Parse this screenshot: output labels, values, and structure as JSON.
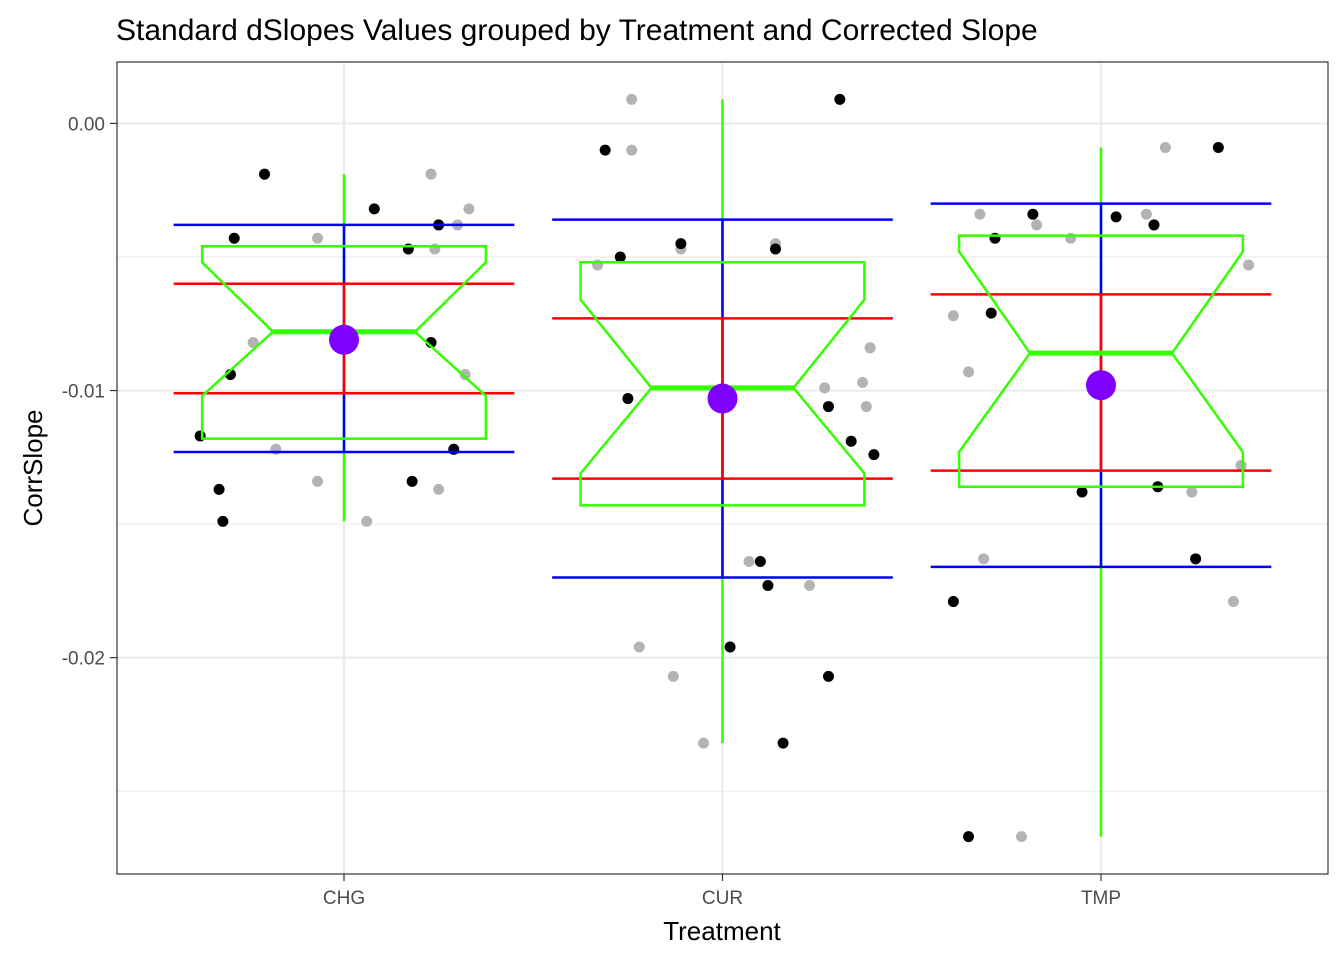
{
  "chart_data": {
    "type": "box",
    "title": "Standard dSlopes Values grouped by Treatment and Corrected Slope",
    "xlabel": "Treatment",
    "ylabel": "CorrSlope",
    "categories": [
      "CHG",
      "CUR",
      "TMP"
    ],
    "ylim": [
      -0.0281,
      0.0023
    ],
    "y_ticks": [
      0.0,
      -0.01,
      -0.02
    ],
    "y_tick_labels": [
      "0.00",
      "-0.01",
      "-0.02"
    ],
    "grid": true,
    "legend": "none",
    "colors": {
      "box": "#33ff00",
      "sd_band": "#ff0000",
      "range_band": "#0000ff",
      "mean_marker": "#8000ff",
      "points_primary": "#000000",
      "points_secondary": "#b3b3b3",
      "grid": "#ebebeb",
      "panel_border": "#333333"
    },
    "boxes": [
      {
        "category": "CHG",
        "q1": -0.0118,
        "q3": -0.0046,
        "median": -0.0078,
        "notch_low": -0.0102,
        "notch_high": -0.0052,
        "whisker_low": -0.0149,
        "whisker_high": -0.0019,
        "mean": -0.0081,
        "sd_low": -0.0101,
        "sd_high": -0.006,
        "outer_low": -0.0123,
        "outer_high": -0.0038
      },
      {
        "category": "CUR",
        "q1": -0.0143,
        "q3": -0.0052,
        "median": -0.0099,
        "notch_low": -0.0131,
        "notch_high": -0.0066,
        "whisker_low": -0.0232,
        "whisker_high": 0.0009,
        "mean": -0.0103,
        "sd_low": -0.0133,
        "sd_high": -0.0073,
        "outer_low": -0.017,
        "outer_high": -0.0036
      },
      {
        "category": "TMP",
        "q1": -0.0136,
        "q3": -0.0042,
        "median": -0.0086,
        "notch_low": -0.0123,
        "notch_high": -0.0048,
        "whisker_low": -0.0267,
        "whisker_high": -0.0009,
        "mean": -0.0098,
        "sd_low": -0.013,
        "sd_high": -0.0064,
        "outer_low": -0.0166,
        "outer_high": -0.003
      }
    ],
    "points": {
      "CHG": {
        "primary": [
          [
            -0.29,
            -0.0043
          ],
          [
            -0.3,
            -0.0094
          ],
          [
            -0.38,
            -0.0117
          ],
          [
            -0.33,
            -0.0137
          ],
          [
            -0.32,
            -0.0149
          ],
          [
            -0.21,
            -0.0019
          ],
          [
            0.08,
            -0.0032
          ],
          [
            0.17,
            -0.0047
          ],
          [
            0.25,
            -0.0038
          ],
          [
            0.23,
            -0.0082
          ],
          [
            0.18,
            -0.0134
          ],
          [
            0.29,
            -0.0122
          ]
        ],
        "secondary": [
          [
            -0.24,
            -0.0082
          ],
          [
            -0.18,
            -0.0122
          ],
          [
            -0.07,
            -0.0043
          ],
          [
            -0.07,
            -0.0134
          ],
          [
            0.06,
            -0.0149
          ],
          [
            0.23,
            -0.0019
          ],
          [
            0.24,
            -0.0047
          ],
          [
            0.3,
            -0.0038
          ],
          [
            0.33,
            -0.0032
          ],
          [
            0.32,
            -0.0094
          ],
          [
            0.25,
            -0.0137
          ]
        ]
      },
      "CUR": {
        "primary": [
          [
            -0.31,
            -0.001
          ],
          [
            -0.27,
            -0.005
          ],
          [
            -0.25,
            -0.0103
          ],
          [
            -0.11,
            -0.0045
          ],
          [
            0.02,
            -0.0196
          ],
          [
            0.1,
            -0.0164
          ],
          [
            0.12,
            -0.0173
          ],
          [
            0.14,
            -0.0047
          ],
          [
            0.16,
            -0.0232
          ],
          [
            0.31,
            0.0009
          ],
          [
            0.28,
            -0.0106
          ],
          [
            0.34,
            -0.0119
          ],
          [
            0.4,
            -0.0124
          ],
          [
            0.28,
            -0.0207
          ]
        ],
        "secondary": [
          [
            -0.24,
            0.0009
          ],
          [
            -0.24,
            -0.001
          ],
          [
            -0.22,
            -0.0196
          ],
          [
            -0.13,
            -0.0207
          ],
          [
            -0.11,
            -0.0047
          ],
          [
            -0.05,
            -0.0232
          ],
          [
            0.07,
            -0.0164
          ],
          [
            0.14,
            -0.0045
          ],
          [
            0.23,
            -0.0173
          ],
          [
            0.27,
            -0.0099
          ],
          [
            0.37,
            -0.0097
          ],
          [
            0.38,
            -0.0106
          ],
          [
            0.39,
            -0.0084
          ],
          [
            -0.33,
            -0.0053
          ]
        ]
      },
      "TMP": {
        "primary": [
          [
            -0.39,
            -0.0179
          ],
          [
            -0.35,
            -0.0267
          ],
          [
            -0.29,
            -0.0071
          ],
          [
            -0.28,
            -0.0043
          ],
          [
            -0.18,
            -0.0034
          ],
          [
            -0.05,
            -0.0138
          ],
          [
            0.04,
            -0.0035
          ],
          [
            0.14,
            -0.0038
          ],
          [
            0.15,
            -0.0136
          ],
          [
            0.25,
            -0.0163
          ],
          [
            0.31,
            -0.0009
          ]
        ],
        "secondary": [
          [
            -0.39,
            -0.0072
          ],
          [
            -0.35,
            -0.0093
          ],
          [
            -0.32,
            -0.0034
          ],
          [
            -0.31,
            -0.0163
          ],
          [
            -0.21,
            -0.0267
          ],
          [
            -0.17,
            -0.0038
          ],
          [
            -0.08,
            -0.0043
          ],
          [
            0.12,
            -0.0034
          ],
          [
            0.17,
            -0.0009
          ],
          [
            0.24,
            -0.0138
          ],
          [
            0.35,
            -0.0179
          ],
          [
            0.39,
            -0.0053
          ],
          [
            0.37,
            -0.0128
          ]
        ]
      }
    }
  }
}
